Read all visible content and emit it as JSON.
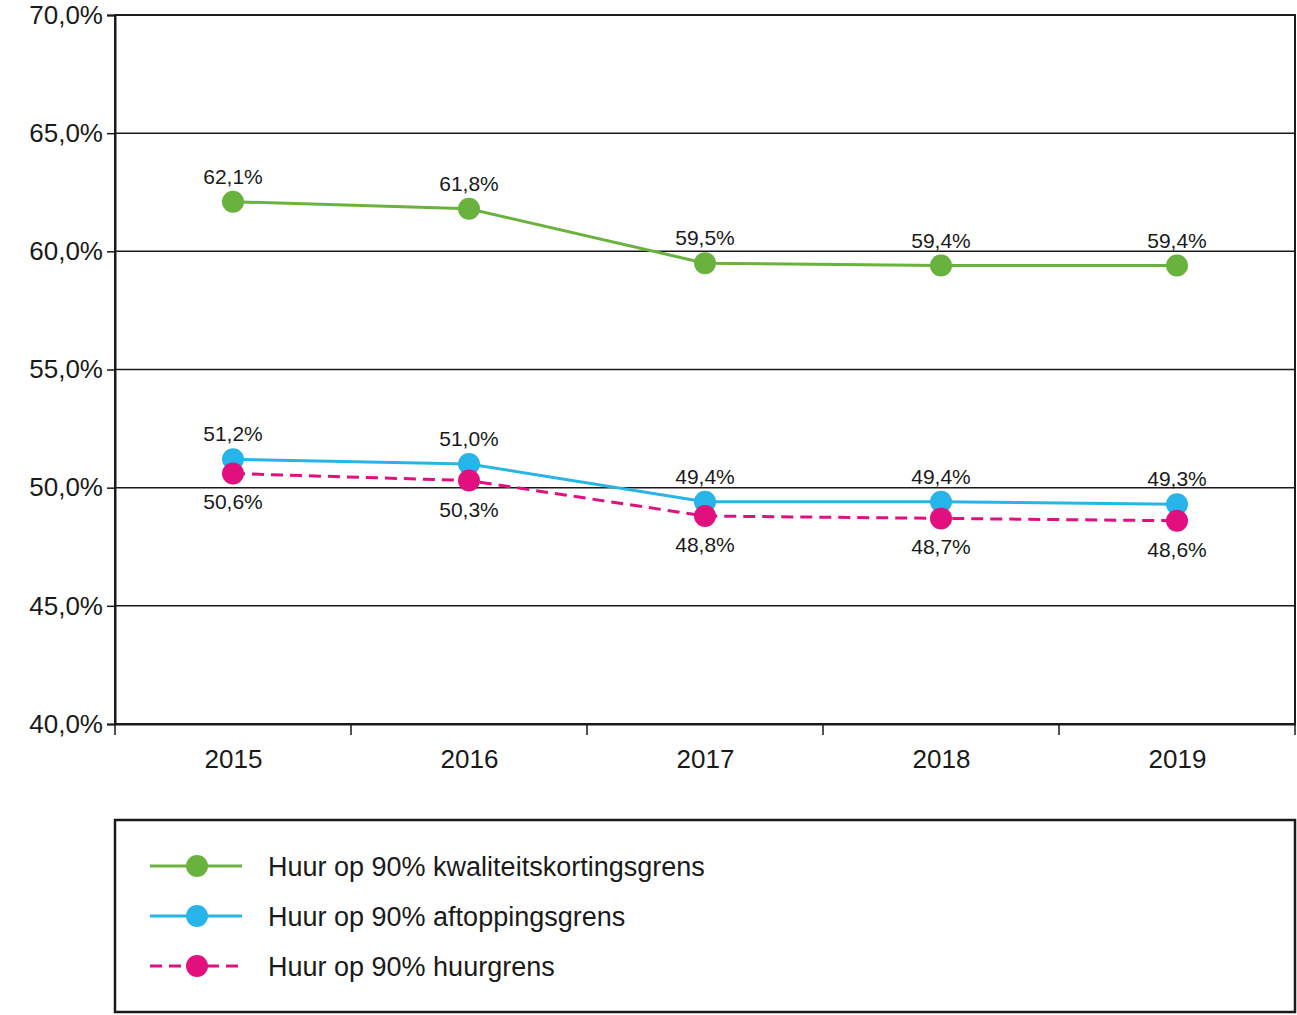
{
  "chart_data": {
    "type": "line",
    "categories": [
      "2015",
      "2016",
      "2017",
      "2018",
      "2019"
    ],
    "series": [
      {
        "name": "Huur op 90% kwaliteitskortingsgrens",
        "color": "#6ab23e",
        "marker": "circle",
        "line_style": "solid",
        "values": [
          62.1,
          61.8,
          59.5,
          59.4,
          59.4
        ],
        "value_labels": [
          "62,1%",
          "61,8%",
          "59,5%",
          "59,4%",
          "59,4%"
        ]
      },
      {
        "name": "Huur op 90% aftoppingsgrens",
        "color": "#27b4e8",
        "marker": "circle",
        "line_style": "solid",
        "values": [
          51.2,
          51.0,
          49.4,
          49.4,
          49.3
        ],
        "value_labels": [
          "51,2%",
          "51,0%",
          "49,4%",
          "49,4%",
          "49,3%"
        ]
      },
      {
        "name": "Huur op 90% huurgrens",
        "color": "#e2107f",
        "marker": "circle",
        "line_style": "dashed",
        "values": [
          50.6,
          50.3,
          48.8,
          48.7,
          48.6
        ],
        "value_labels": [
          "50,6%",
          "50,3%",
          "48,8%",
          "48,7%",
          "48,6%"
        ]
      }
    ],
    "ylim": [
      40,
      70
    ],
    "yticks": [
      {
        "value": 40,
        "label": "40,0%"
      },
      {
        "value": 45,
        "label": "45,0%"
      },
      {
        "value": 50,
        "label": "50,0%"
      },
      {
        "value": 55,
        "label": "55,0%"
      },
      {
        "value": 60,
        "label": "60,0%"
      },
      {
        "value": 65,
        "label": "65,0%"
      },
      {
        "value": 70,
        "label": "70,0%"
      }
    ],
    "grid": true,
    "legend": "bottom",
    "data_labels": true
  }
}
